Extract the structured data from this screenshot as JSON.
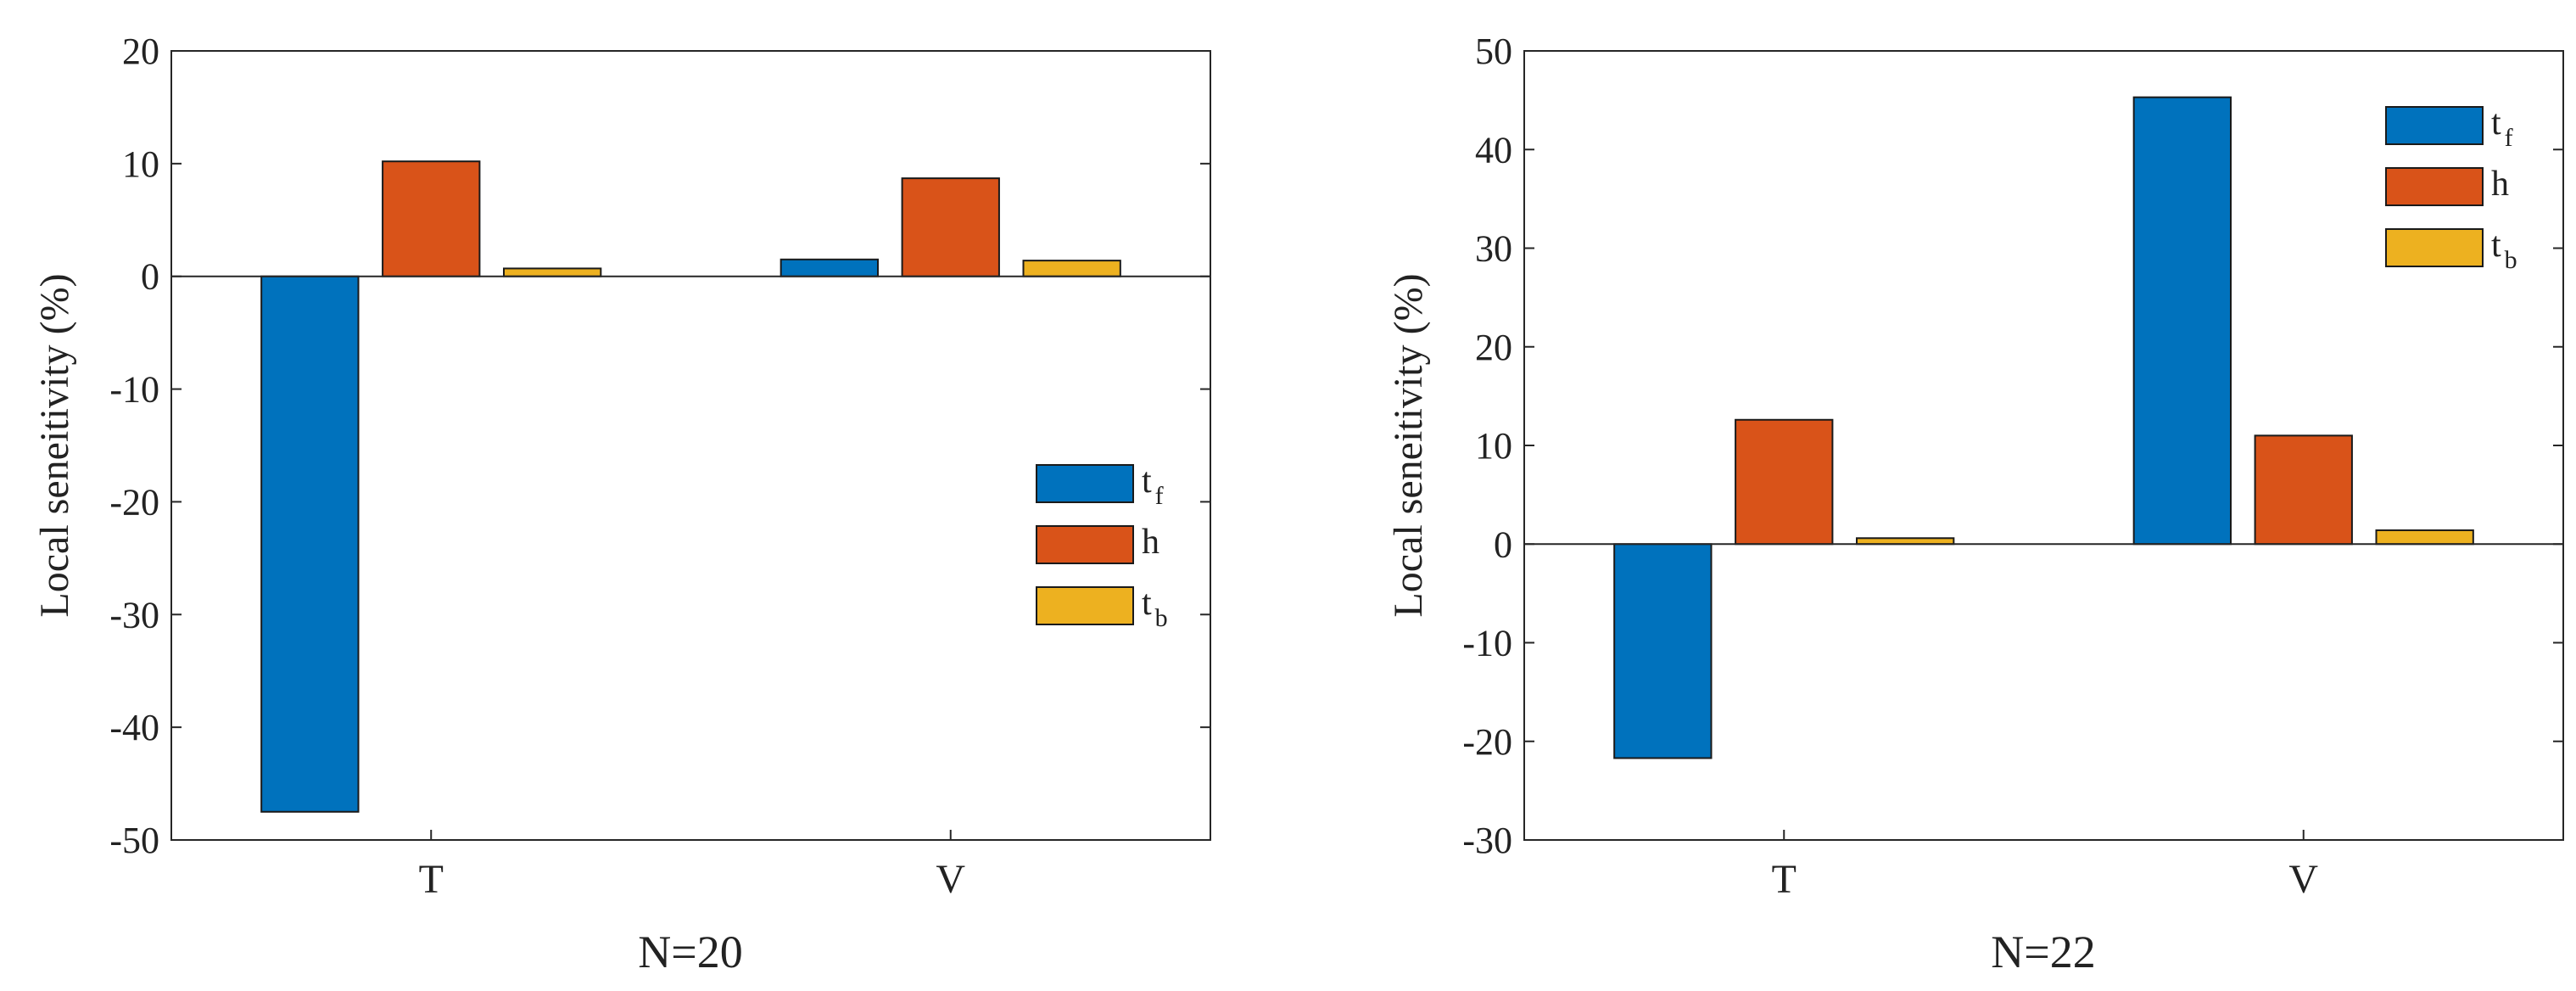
{
  "chart_data": [
    {
      "type": "bar",
      "title": "",
      "xlabel": "N=20",
      "ylabel": "Local seneitivity (%)",
      "categories": [
        "T",
        "V"
      ],
      "ylim": [
        -50,
        20
      ],
      "yticks": [
        20,
        10,
        0,
        -10,
        -20,
        -30,
        -40,
        -50
      ],
      "ytick_labels": [
        "20",
        "10",
        "0",
        "-10",
        "-20",
        "-30",
        "-40",
        "-50"
      ],
      "grid": false,
      "legend_position": "right-middle",
      "series": [
        {
          "name": "t_f",
          "legend_main": "t",
          "legend_sub": "f",
          "color": "#0072BD",
          "values": [
            -47.5,
            1.5
          ]
        },
        {
          "name": "h",
          "legend_main": "h",
          "legend_sub": "",
          "color": "#D95319",
          "values": [
            10.2,
            8.7
          ]
        },
        {
          "name": "t_b",
          "legend_main": "t",
          "legend_sub": "b",
          "color": "#EDB120",
          "values": [
            0.7,
            1.4
          ]
        }
      ]
    },
    {
      "type": "bar",
      "title": "",
      "xlabel": "N=22",
      "ylabel": "Local seneitivity (%)",
      "categories": [
        "T",
        "V"
      ],
      "ylim": [
        -30,
        50
      ],
      "yticks": [
        50,
        40,
        30,
        20,
        10,
        0,
        -10,
        -20,
        -30
      ],
      "ytick_labels": [
        "50",
        "40",
        "30",
        "20",
        "10",
        "0",
        "-10",
        "-20",
        "-30"
      ],
      "grid": false,
      "legend_position": "top-right",
      "series": [
        {
          "name": "t_f",
          "legend_main": "t",
          "legend_sub": "f",
          "color": "#0072BD",
          "values": [
            -21.7,
            45.3
          ]
        },
        {
          "name": "h",
          "legend_main": "h",
          "legend_sub": "",
          "color": "#D95319",
          "values": [
            12.6,
            11.0
          ]
        },
        {
          "name": "t_b",
          "legend_main": "t",
          "legend_sub": "b",
          "color": "#EDB120",
          "values": [
            0.6,
            1.4
          ]
        }
      ]
    }
  ]
}
